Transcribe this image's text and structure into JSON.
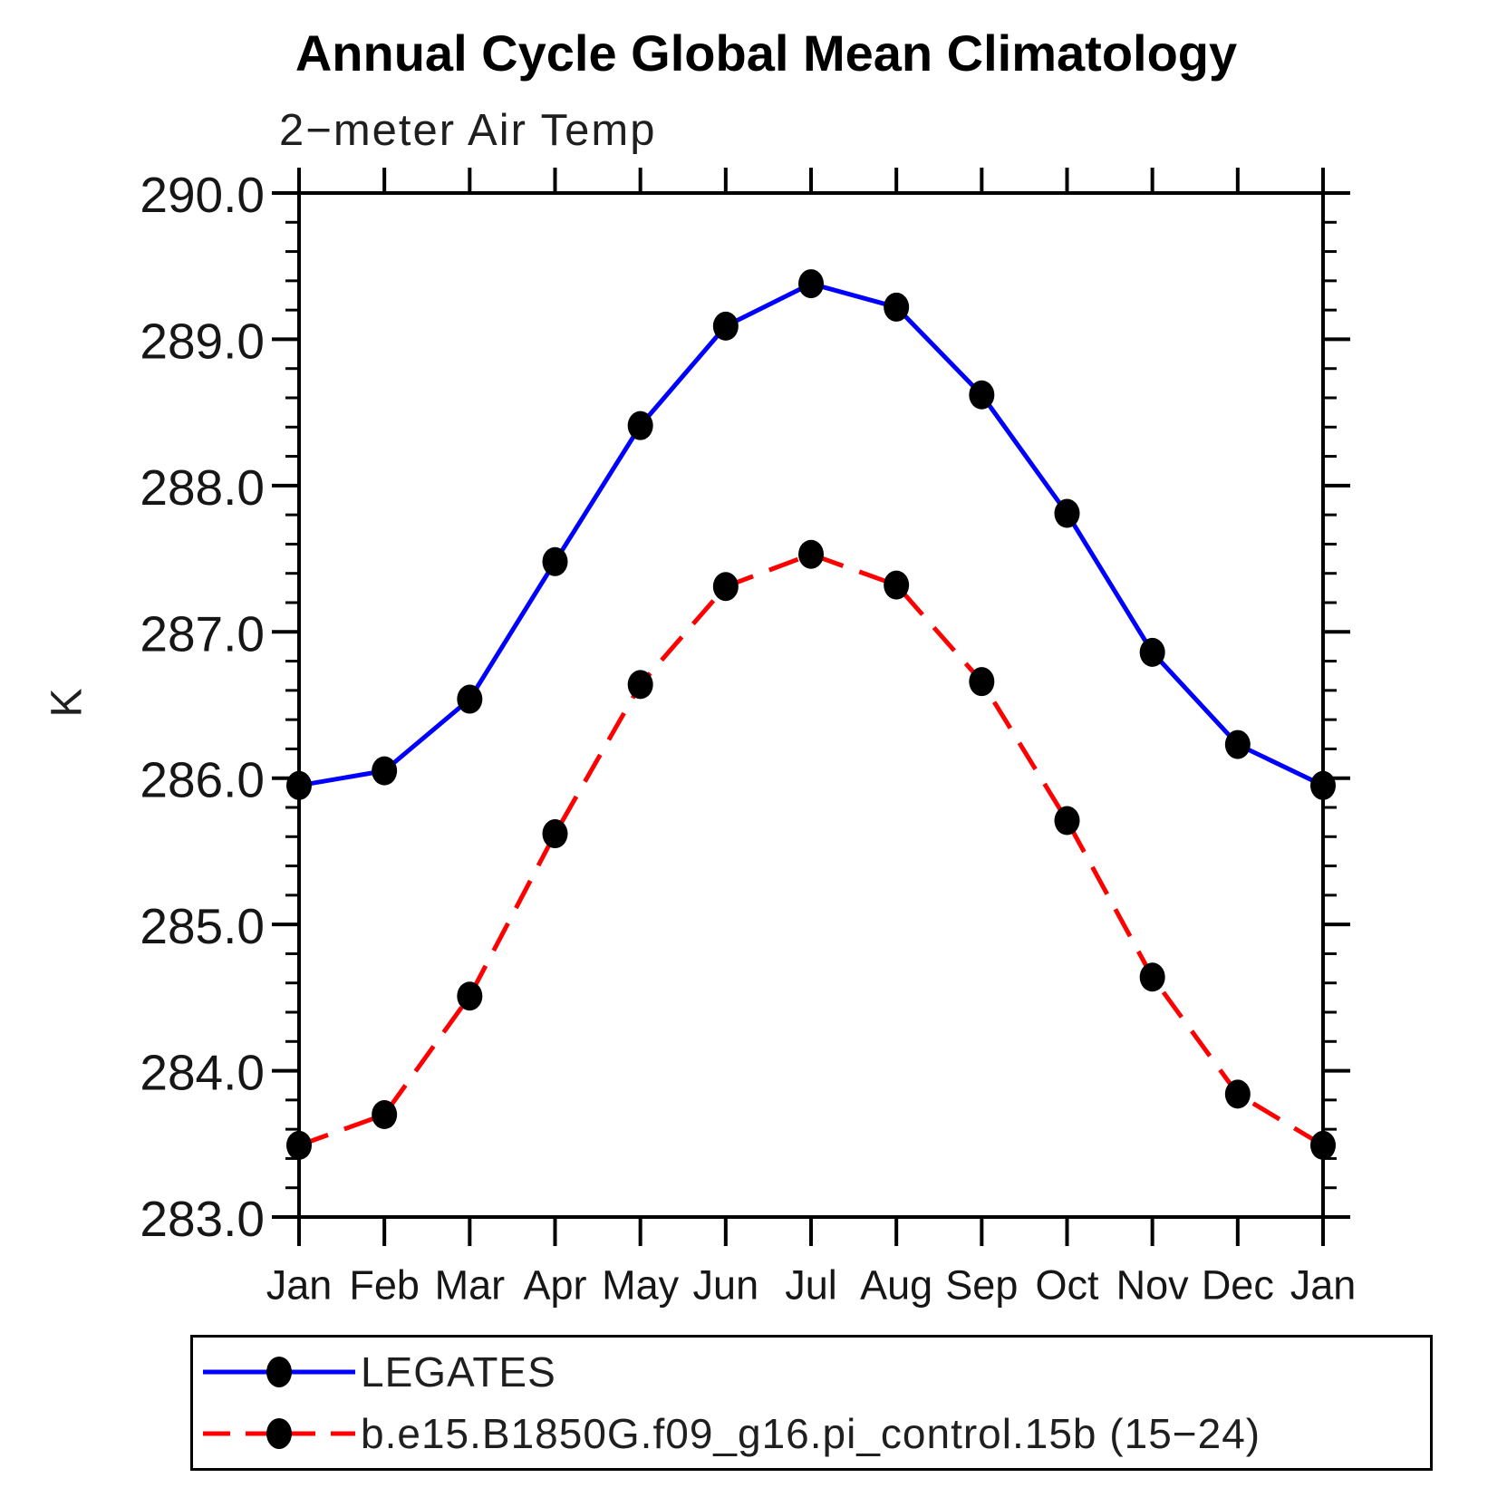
{
  "chart_data": {
    "type": "line",
    "title": "Annual Cycle Global Mean Climatology",
    "subtitle": "2−meter Air Temp",
    "ylabel": "K",
    "x_categories": [
      "Jan",
      "Feb",
      "Mar",
      "Apr",
      "May",
      "Jun",
      "Jul",
      "Aug",
      "Sep",
      "Oct",
      "Nov",
      "Dec",
      "Jan"
    ],
    "ylim": [
      283.0,
      290.0
    ],
    "ytick_values": [
      290.0,
      289.0,
      288.0,
      287.0,
      286.0,
      285.0,
      284.0,
      283.0
    ],
    "ytick_labels": [
      "290.0",
      "289.0",
      "288.0",
      "287.0",
      "286.0",
      "285.0",
      "284.0",
      "283.0"
    ],
    "ytick_minor_step": 0.2,
    "grid": false,
    "legend_position": "bottom-left",
    "series": [
      {
        "name": "LEGATES",
        "line_style": "solid",
        "color": "#0000ff",
        "marker": "filled-circle",
        "marker_color": "#000000",
        "values": [
          285.95,
          286.05,
          286.54,
          287.48,
          288.41,
          289.09,
          289.38,
          289.22,
          288.62,
          287.81,
          286.86,
          286.23,
          285.95
        ]
      },
      {
        "name": "b.e15.B1850G.f09_g16.pi_control.15b (15−24)",
        "line_style": "dashed",
        "color": "#ff0000",
        "marker": "filled-circle",
        "marker_color": "#000000",
        "values": [
          283.49,
          283.7,
          284.51,
          285.62,
          286.64,
          287.31,
          287.53,
          287.32,
          286.66,
          285.71,
          284.64,
          283.84,
          283.49
        ]
      }
    ]
  },
  "colors": {
    "axis": "#000000",
    "tick_text": "#161616",
    "title": "#000000",
    "background": "#ffffff"
  }
}
